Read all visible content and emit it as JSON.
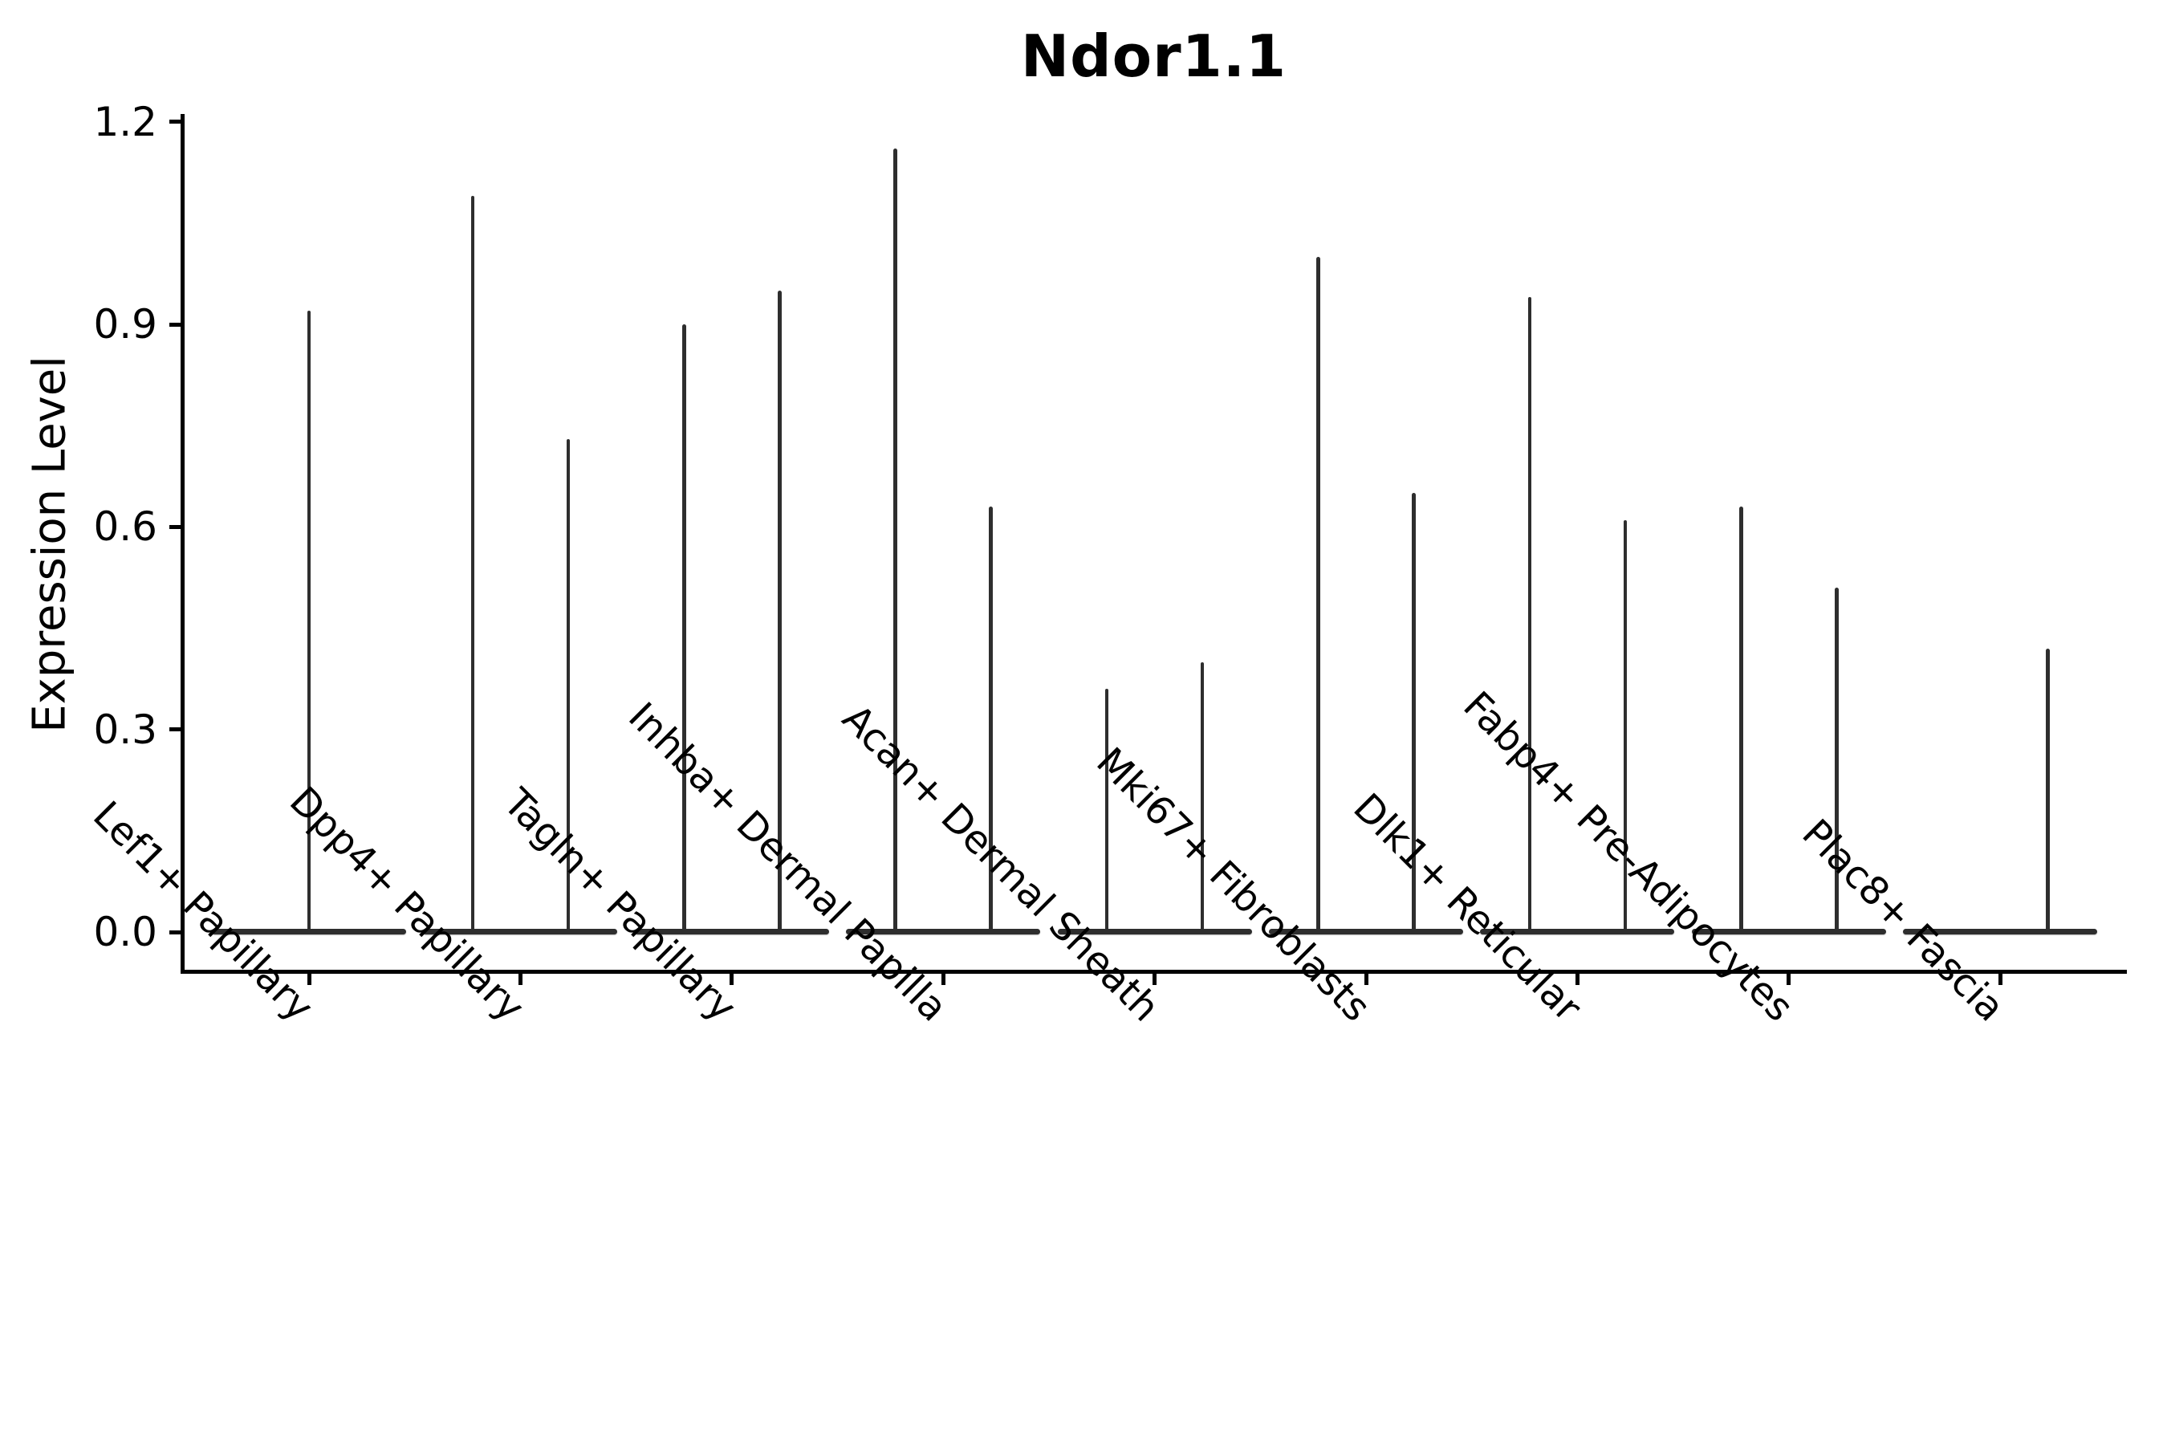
{
  "chart_data": {
    "type": "violin",
    "title": "Ndor1.1",
    "ylabel": "Expression Level",
    "xlabel": "",
    "ylim": [
      0.0,
      1.21
    ],
    "ytick_labels": [
      "0.0",
      "0.3",
      "0.6",
      "0.9",
      "1.2"
    ],
    "ytick_values": [
      0.0,
      0.3,
      0.6,
      0.9,
      1.2
    ],
    "grid": false,
    "legend": "none",
    "description": "Violin plot of expression level per fibroblast cluster; each category shows a flat density mass at 0 with thin spikes reaching the maximum expression of each split violin.",
    "categories": [
      {
        "label": "Lef1+ Papillary",
        "violins": [
          {
            "position": "center",
            "max": 0.92
          }
        ]
      },
      {
        "label": "Dpp4+ Papillary",
        "violins": [
          {
            "position": "left",
            "max": 1.09
          },
          {
            "position": "right",
            "max": 0.73
          }
        ]
      },
      {
        "label": "Tagln+ Papillary",
        "violins": [
          {
            "position": "left",
            "max": 0.9
          },
          {
            "position": "right",
            "max": 0.95
          }
        ]
      },
      {
        "label": "Inhba+ Dermal Papilla",
        "violins": [
          {
            "position": "left",
            "max": 1.16
          },
          {
            "position": "right",
            "max": 0.63
          }
        ]
      },
      {
        "label": "Acan+ Dermal Sheath",
        "violins": [
          {
            "position": "left",
            "max": 0.36
          },
          {
            "position": "right",
            "max": 0.4
          }
        ]
      },
      {
        "label": "Mki67+ Fibroblasts",
        "violins": [
          {
            "position": "left",
            "max": 1.0
          },
          {
            "position": "right",
            "max": 0.65
          }
        ]
      },
      {
        "label": "Dlk1+ Reticular",
        "violins": [
          {
            "position": "left",
            "max": 0.94
          },
          {
            "position": "right",
            "max": 0.61
          }
        ]
      },
      {
        "label": "Fabp4+ Pre-Adipocytes",
        "violins": [
          {
            "position": "left",
            "max": 0.63
          },
          {
            "position": "right",
            "max": 0.51
          }
        ]
      },
      {
        "label": "Plac8+ Fascia",
        "violins": [
          {
            "position": "right",
            "max": 0.42
          }
        ]
      }
    ],
    "colors": {
      "ink": "#000000",
      "violin": "#2e2e2e",
      "background": "#ffffff"
    }
  }
}
